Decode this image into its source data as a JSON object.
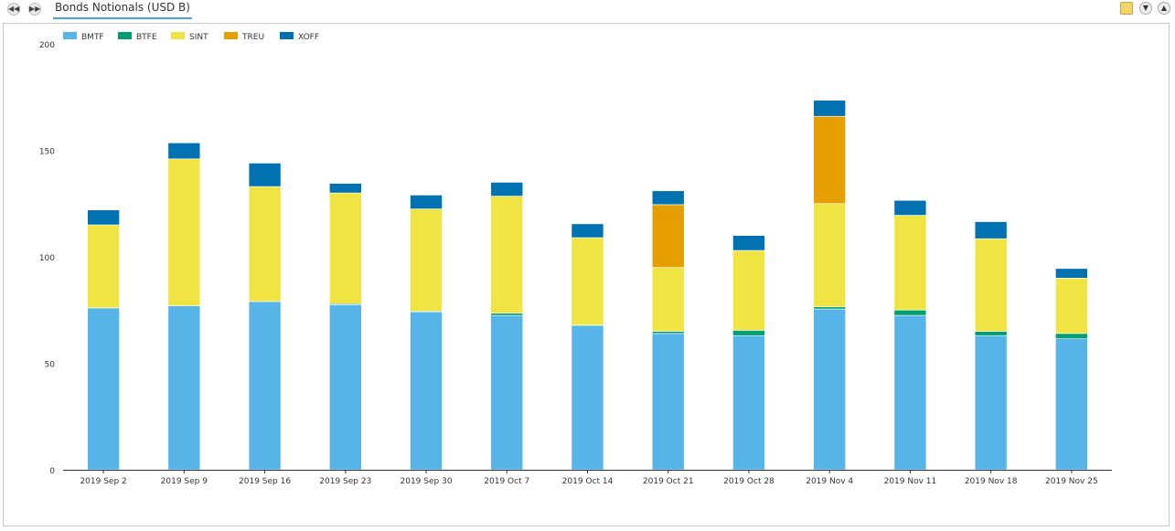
{
  "toolbar": {
    "back_icon": "rewind-icon",
    "forward_icon": "fast-forward-icon",
    "title": "Bonds Notionals (USD B)",
    "icons": [
      "export-icon",
      "collapse-down-icon",
      "collapse-up-icon"
    ]
  },
  "chart_data": {
    "type": "bar",
    "stacked": true,
    "title": "Bonds Notionals (USD B)",
    "categories": [
      "2019 Sep 2",
      "2019 Sep 9",
      "2019 Sep 16",
      "2019 Sep 23",
      "2019 Sep 30",
      "2019 Oct 7",
      "2019 Oct 14",
      "2019 Oct 21",
      "2019 Oct 28",
      "2019 Nov 4",
      "2019 Nov 11",
      "2019 Nov 18",
      "2019 Nov 25"
    ],
    "series": [
      {
        "name": "BMTF",
        "color": "#56b4e9",
        "values": [
          76,
          77,
          79,
          77.5,
          74,
          72.5,
          67.5,
          64,
          63,
          75.5,
          72.5,
          63,
          61.5
        ]
      },
      {
        "name": "BTFE",
        "color": "#009e73",
        "values": [
          0,
          0,
          0,
          0.5,
          0.5,
          1,
          0.5,
          1,
          2.5,
          1,
          2.5,
          2,
          2.5
        ]
      },
      {
        "name": "SINT",
        "color": "#f0e442",
        "values": [
          39,
          69,
          54,
          52,
          48,
          55,
          41,
          30,
          37.5,
          48.5,
          44.5,
          43.5,
          26
        ]
      },
      {
        "name": "TREU",
        "color": "#e69f00",
        "values": [
          0,
          0,
          0,
          0,
          0,
          0,
          0,
          29.5,
          0,
          41,
          0,
          0,
          0
        ]
      },
      {
        "name": "XOFF",
        "color": "#0072b2",
        "values": [
          7,
          7.5,
          11,
          4.5,
          6.5,
          6.5,
          6.5,
          6.5,
          7,
          7.5,
          7,
          8,
          4.5
        ]
      }
    ],
    "yticks": [
      0,
      50,
      100,
      150,
      200
    ],
    "ylim": [
      0,
      200
    ],
    "grid": false,
    "legend_position": "top-left"
  }
}
